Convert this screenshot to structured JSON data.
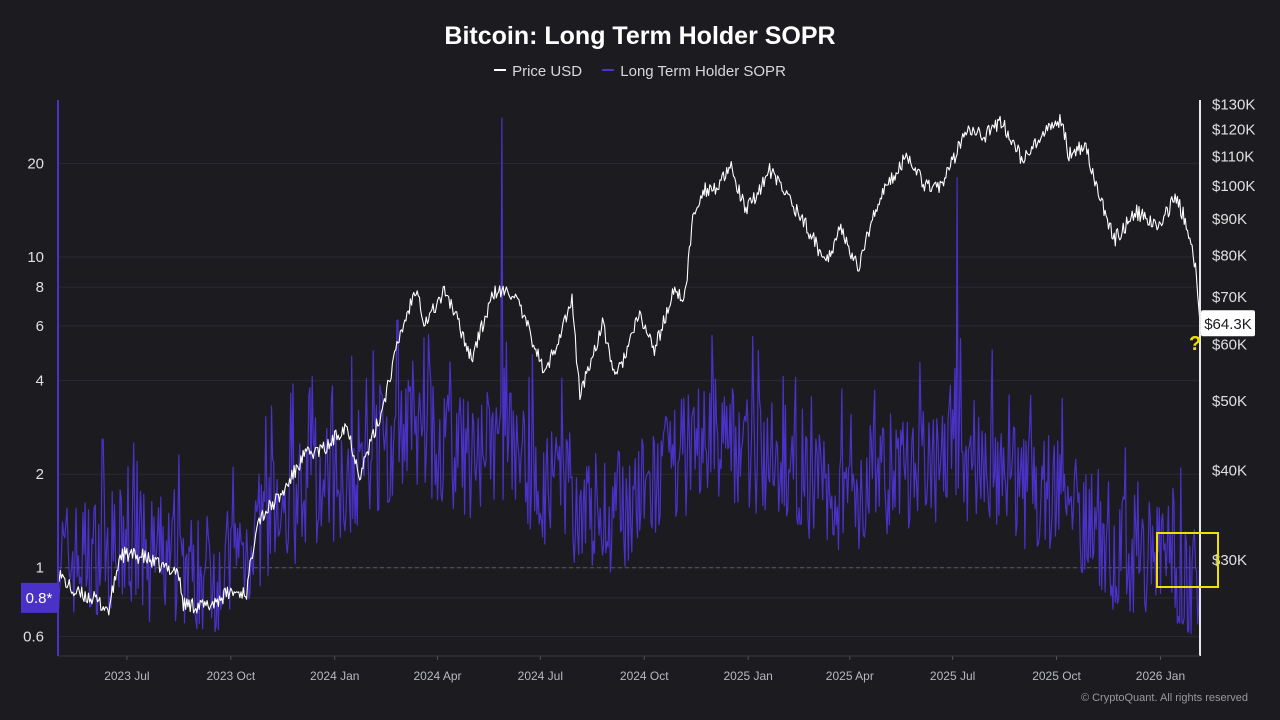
{
  "chart_data": {
    "type": "line",
    "title": "Bitcoin: Long Term Holder SOPR",
    "legend": [
      {
        "name": "Price USD",
        "color": "#ffffff"
      },
      {
        "name": "Long Term Holder SOPR",
        "color": "#4a32c8"
      }
    ],
    "x_tick_labels": [
      "2023 Jul",
      "2023 Oct",
      "2024 Jan",
      "2024 Apr",
      "2024 Jul",
      "2024 Oct",
      "2025 Jan",
      "2025 Apr",
      "2025 Jul",
      "2025 Oct",
      "2026 Jan"
    ],
    "x_range": [
      "2023-05-01",
      "2026-02-05"
    ],
    "left_axis": {
      "scale": "log",
      "range": [
        0.52,
        32
      ],
      "ticks": [
        0.6,
        0.8,
        1,
        2,
        4,
        6,
        8,
        10,
        20
      ],
      "tick_labels": [
        "0.6",
        "0.8",
        "1",
        "2",
        "4",
        "6",
        "8",
        "10",
        "20"
      ],
      "reference_line": 1,
      "current_marker": "0.8*"
    },
    "right_axis": {
      "scale": "log",
      "range": [
        22000,
        132000
      ],
      "ticks": [
        30000,
        40000,
        50000,
        60000,
        70000,
        80000,
        90000,
        100000,
        110000,
        120000,
        130000
      ],
      "tick_labels": [
        "$30K",
        "$40K",
        "$50K",
        "$60K",
        "$70K",
        "$80K",
        "$90K",
        "$100K",
        "$110K",
        "$120K",
        "$130K"
      ],
      "current_price_label": "$64.3K"
    },
    "series": [
      {
        "name": "Price USD",
        "axis": "right",
        "points": [
          [
            "2023-05-01",
            28800
          ],
          [
            "2023-05-15",
            27000
          ],
          [
            "2023-06-01",
            26500
          ],
          [
            "2023-06-15",
            25500
          ],
          [
            "2023-06-25",
            30500
          ],
          [
            "2023-07-15",
            30300
          ],
          [
            "2023-08-01",
            29300
          ],
          [
            "2023-08-15",
            29000
          ],
          [
            "2023-08-20",
            26000
          ],
          [
            "2023-09-10",
            25800
          ],
          [
            "2023-09-30",
            27000
          ],
          [
            "2023-10-15",
            27000
          ],
          [
            "2023-10-24",
            34000
          ],
          [
            "2023-11-15",
            37000
          ],
          [
            "2023-12-05",
            42000
          ],
          [
            "2023-12-25",
            43000
          ],
          [
            "2024-01-11",
            46500
          ],
          [
            "2024-01-23",
            39500
          ],
          [
            "2024-02-10",
            47500
          ],
          [
            "2024-02-28",
            62000
          ],
          [
            "2024-03-14",
            73000
          ],
          [
            "2024-03-20",
            64000
          ],
          [
            "2024-04-08",
            71500
          ],
          [
            "2024-04-20",
            64000
          ],
          [
            "2024-05-01",
            57500
          ],
          [
            "2024-05-21",
            71000
          ],
          [
            "2024-06-07",
            71000
          ],
          [
            "2024-06-25",
            60500
          ],
          [
            "2024-07-05",
            54500
          ],
          [
            "2024-07-29",
            69000
          ],
          [
            "2024-08-05",
            51000
          ],
          [
            "2024-08-25",
            64000
          ],
          [
            "2024-09-06",
            53800
          ],
          [
            "2024-09-27",
            66000
          ],
          [
            "2024-10-10",
            59000
          ],
          [
            "2024-10-29",
            72500
          ],
          [
            "2024-11-05",
            68000
          ],
          [
            "2024-11-13",
            90000
          ],
          [
            "2024-11-22",
            99000
          ],
          [
            "2024-12-05",
            99500
          ],
          [
            "2024-12-17",
            106000
          ],
          [
            "2024-12-30",
            92000
          ],
          [
            "2025-01-20",
            105000
          ],
          [
            "2025-02-05",
            97000
          ],
          [
            "2025-02-25",
            86000
          ],
          [
            "2025-03-10",
            78500
          ],
          [
            "2025-03-25",
            87500
          ],
          [
            "2025-04-08",
            76500
          ],
          [
            "2025-04-25",
            94500
          ],
          [
            "2025-05-22",
            111000
          ],
          [
            "2025-06-05",
            101000
          ],
          [
            "2025-06-22",
            100000
          ],
          [
            "2025-07-14",
            121500
          ],
          [
            "2025-07-30",
            118000
          ],
          [
            "2025-08-14",
            123000
          ],
          [
            "2025-09-01",
            108500
          ],
          [
            "2025-09-18",
            117000
          ],
          [
            "2025-10-06",
            124500
          ],
          [
            "2025-10-11",
            111000
          ],
          [
            "2025-10-27",
            114500
          ],
          [
            "2025-11-04",
            101000
          ],
          [
            "2025-11-21",
            84000
          ],
          [
            "2025-12-10",
            92000
          ],
          [
            "2025-12-31",
            87500
          ],
          [
            "2026-01-14",
            97000
          ],
          [
            "2026-01-25",
            88000
          ],
          [
            "2026-02-01",
            77000
          ],
          [
            "2026-02-05",
            64300
          ]
        ]
      },
      {
        "name": "Long Term Holder SOPR",
        "axis": "left",
        "points": [
          [
            "2023-05-01",
            1.05
          ],
          [
            "2023-06-01",
            1.1
          ],
          [
            "2023-07-01",
            1.15
          ],
          [
            "2023-08-01",
            1.1
          ],
          [
            "2023-09-01",
            0.95
          ],
          [
            "2023-10-01",
            1.0
          ],
          [
            "2023-11-01",
            1.4
          ],
          [
            "2023-12-01",
            1.7
          ],
          [
            "2024-01-01",
            1.9
          ],
          [
            "2024-02-01",
            2.2
          ],
          [
            "2024-03-01",
            2.8
          ],
          [
            "2024-04-01",
            2.5
          ],
          [
            "2024-05-01",
            2.2
          ],
          [
            "2024-06-01",
            2.6
          ],
          [
            "2024-07-01",
            1.9
          ],
          [
            "2024-08-01",
            1.6
          ],
          [
            "2024-09-01",
            1.5
          ],
          [
            "2024-10-01",
            1.7
          ],
          [
            "2024-11-01",
            2.2
          ],
          [
            "2024-12-01",
            2.7
          ],
          [
            "2025-01-01",
            2.4
          ],
          [
            "2025-02-01",
            2.2
          ],
          [
            "2025-03-01",
            1.8
          ],
          [
            "2025-04-01",
            1.7
          ],
          [
            "2025-05-01",
            2.0
          ],
          [
            "2025-06-01",
            2.0
          ],
          [
            "2025-07-01",
            2.4
          ],
          [
            "2025-08-01",
            2.2
          ],
          [
            "2025-09-01",
            1.8
          ],
          [
            "2025-10-01",
            1.8
          ],
          [
            "2025-11-01",
            1.4
          ],
          [
            "2025-12-01",
            1.1
          ],
          [
            "2026-01-01",
            1.15
          ],
          [
            "2026-02-05",
            0.85
          ]
        ],
        "spikes": [
          [
            "2024-05-28",
            28
          ],
          [
            "2025-07-05",
            18
          ],
          [
            "2024-03-20",
            5.5
          ],
          [
            "2025-01-10",
            5.0
          ],
          [
            "2024-04-12",
            4.6
          ],
          [
            "2023-12-10",
            3.8
          ],
          [
            "2025-08-20",
            3.6
          ],
          [
            "2025-02-12",
            4.1
          ],
          [
            "2023-07-10",
            2.2
          ],
          [
            "2026-01-12",
            1.8
          ]
        ]
      }
    ],
    "annotations": [
      "?"
    ]
  },
  "footer": {
    "copyright": "© CryptoQuant. All rights reserved"
  }
}
